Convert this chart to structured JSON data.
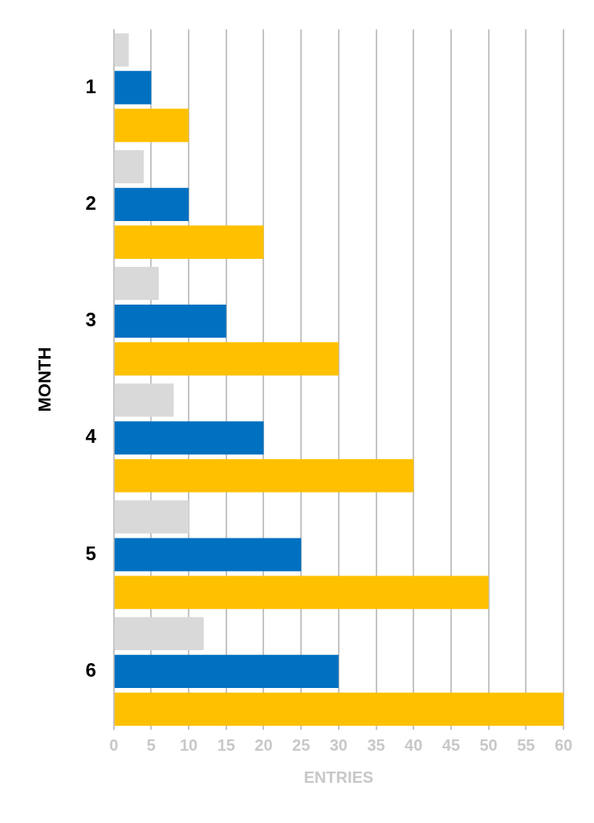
{
  "chart_data": {
    "type": "bar",
    "orientation": "horizontal",
    "xlabel": "ENTRIES",
    "ylabel": "MONTH",
    "categories": [
      "1",
      "2",
      "3",
      "4",
      "5",
      "6"
    ],
    "series": [
      {
        "color": "#d9d9d9",
        "values": [
          2,
          4,
          6,
          8,
          10,
          12
        ]
      },
      {
        "color": "#0070c0",
        "values": [
          5,
          10,
          15,
          20,
          25,
          30
        ]
      },
      {
        "color": "#ffc000",
        "values": [
          10,
          20,
          30,
          40,
          50,
          60
        ]
      }
    ],
    "xlim": [
      0,
      60
    ],
    "xticks": [
      0,
      5,
      10,
      15,
      20,
      25,
      30,
      35,
      40,
      45,
      50,
      55,
      60
    ],
    "grid": "x",
    "legend": false
  }
}
